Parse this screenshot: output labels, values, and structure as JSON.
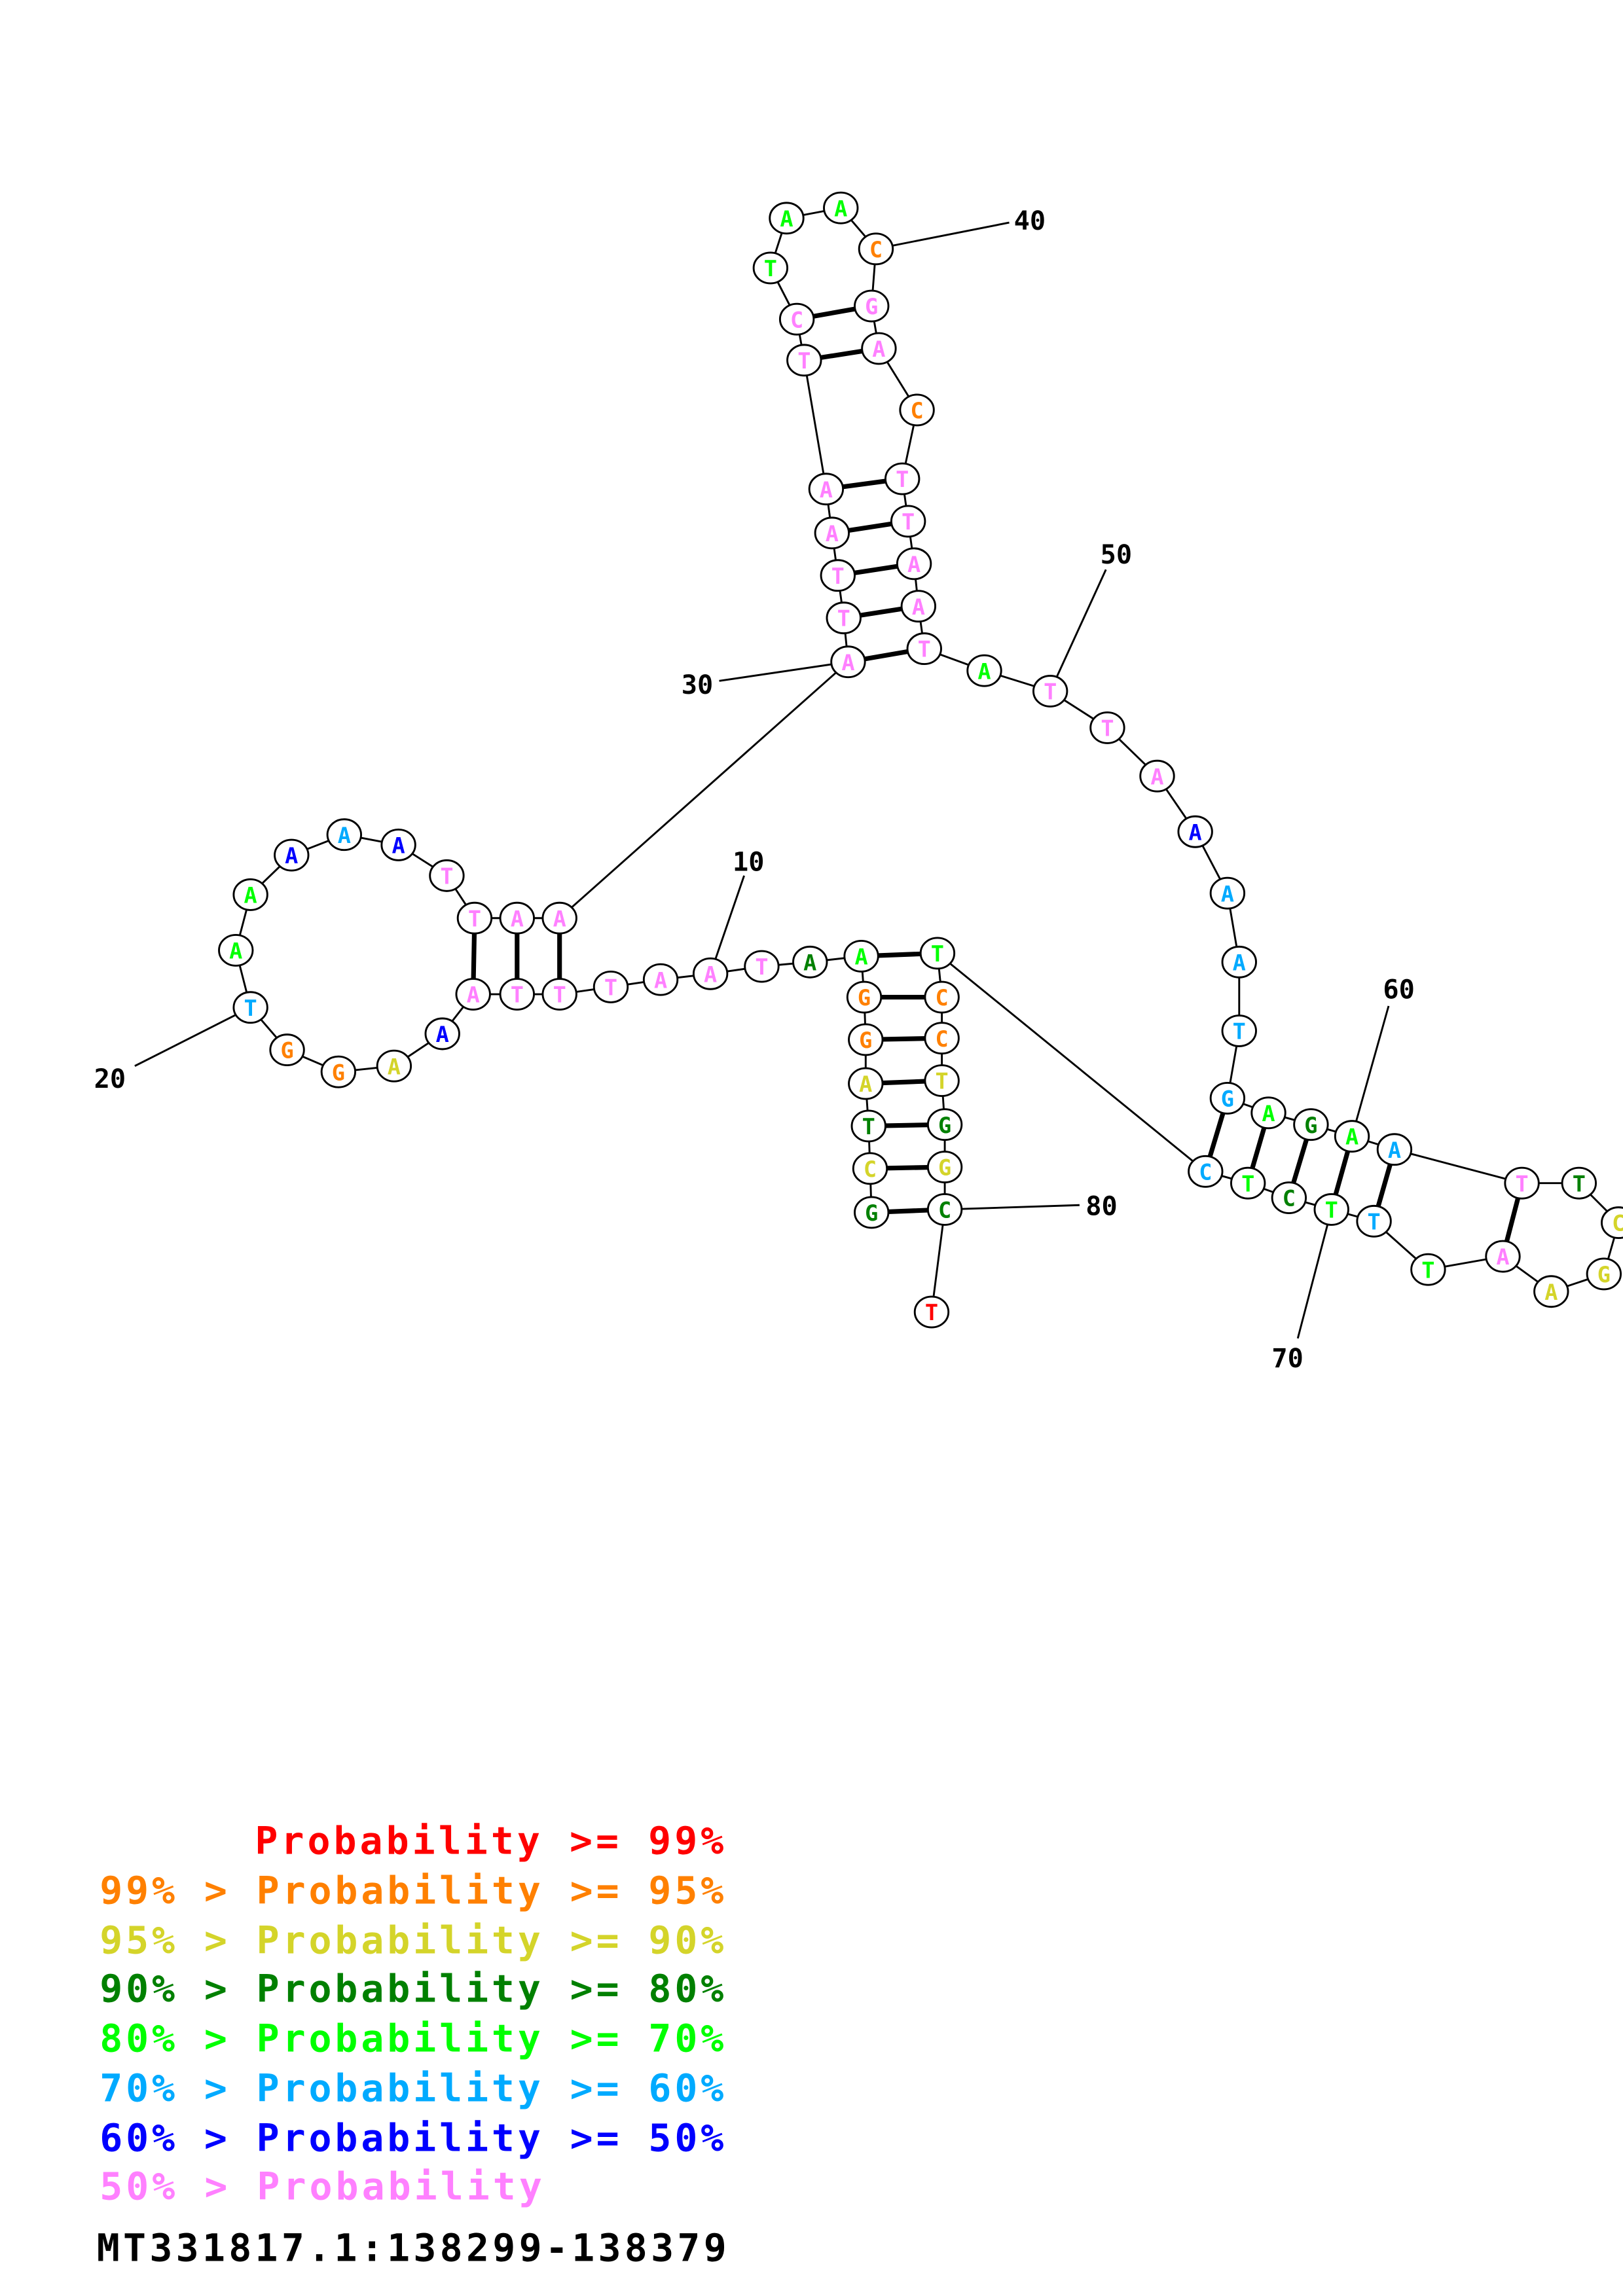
{
  "diagram": {
    "type": "RNA secondary structure",
    "tier_colors": [
      "#ff0000",
      "#ff8000",
      "#d4d42a",
      "#008000",
      "#00ff00",
      "#00aaff",
      "#0000ff",
      "#ff80ff"
    ],
    "nucleotides": [
      {
        "base": "G",
        "tier": 3
      },
      {
        "base": "C",
        "tier": 2
      },
      {
        "base": "T",
        "tier": 3
      },
      {
        "base": "A",
        "tier": 2
      },
      {
        "base": "G",
        "tier": 1
      },
      {
        "base": "G",
        "tier": 1
      },
      {
        "base": "A",
        "tier": 4
      },
      {
        "base": "A",
        "tier": 3
      },
      {
        "base": "T",
        "tier": 7
      },
      {
        "base": "A",
        "tier": 7
      },
      {
        "base": "A",
        "tier": 7
      },
      {
        "base": "T",
        "tier": 7
      },
      {
        "base": "T",
        "tier": 7
      },
      {
        "base": "T",
        "tier": 7
      },
      {
        "base": "A",
        "tier": 7
      },
      {
        "base": "A",
        "tier": 6
      },
      {
        "base": "A",
        "tier": 2
      },
      {
        "base": "G",
        "tier": 1
      },
      {
        "base": "G",
        "tier": 1
      },
      {
        "base": "T",
        "tier": 5
      },
      {
        "base": "A",
        "tier": 4
      },
      {
        "base": "A",
        "tier": 4
      },
      {
        "base": "A",
        "tier": 6
      },
      {
        "base": "A",
        "tier": 5
      },
      {
        "base": "A",
        "tier": 6
      },
      {
        "base": "T",
        "tier": 7
      },
      {
        "base": "T",
        "tier": 7
      },
      {
        "base": "A",
        "tier": 7
      },
      {
        "base": "A",
        "tier": 7
      },
      {
        "base": "A",
        "tier": 7
      },
      {
        "base": "T",
        "tier": 7
      },
      {
        "base": "T",
        "tier": 7
      },
      {
        "base": "A",
        "tier": 7
      },
      {
        "base": "A",
        "tier": 7
      },
      {
        "base": "T",
        "tier": 7
      },
      {
        "base": "C",
        "tier": 7
      },
      {
        "base": "T",
        "tier": 4
      },
      {
        "base": "A",
        "tier": 4
      },
      {
        "base": "A",
        "tier": 4
      },
      {
        "base": "C",
        "tier": 1
      },
      {
        "base": "G",
        "tier": 7
      },
      {
        "base": "A",
        "tier": 7
      },
      {
        "base": "C",
        "tier": 1
      },
      {
        "base": "T",
        "tier": 7
      },
      {
        "base": "T",
        "tier": 7
      },
      {
        "base": "A",
        "tier": 7
      },
      {
        "base": "A",
        "tier": 7
      },
      {
        "base": "T",
        "tier": 7
      },
      {
        "base": "A",
        "tier": 4
      },
      {
        "base": "T",
        "tier": 7
      },
      {
        "base": "T",
        "tier": 7
      },
      {
        "base": "A",
        "tier": 7
      },
      {
        "base": "A",
        "tier": 6
      },
      {
        "base": "A",
        "tier": 5
      },
      {
        "base": "A",
        "tier": 5
      },
      {
        "base": "T",
        "tier": 5
      },
      {
        "base": "G",
        "tier": 5
      },
      {
        "base": "A",
        "tier": 4
      },
      {
        "base": "G",
        "tier": 3
      },
      {
        "base": "A",
        "tier": 4
      },
      {
        "base": "A",
        "tier": 5
      },
      {
        "base": "T",
        "tier": 7
      },
      {
        "base": "T",
        "tier": 3
      },
      {
        "base": "C",
        "tier": 2
      },
      {
        "base": "G",
        "tier": 2
      },
      {
        "base": "A",
        "tier": 2
      },
      {
        "base": "A",
        "tier": 7
      },
      {
        "base": "T",
        "tier": 4
      },
      {
        "base": "T",
        "tier": 5
      },
      {
        "base": "T",
        "tier": 4
      },
      {
        "base": "C",
        "tier": 3
      },
      {
        "base": "T",
        "tier": 4
      },
      {
        "base": "C",
        "tier": 5
      },
      {
        "base": "T",
        "tier": 4
      },
      {
        "base": "C",
        "tier": 1
      },
      {
        "base": "C",
        "tier": 1
      },
      {
        "base": "T",
        "tier": 2
      },
      {
        "base": "G",
        "tier": 3
      },
      {
        "base": "G",
        "tier": 2
      },
      {
        "base": "C",
        "tier": 3
      },
      {
        "base": "T",
        "tier": 0
      }
    ],
    "pairs": [
      [
        1,
        80
      ],
      [
        2,
        79
      ],
      [
        3,
        78
      ],
      [
        4,
        77
      ],
      [
        5,
        76
      ],
      [
        6,
        75
      ],
      [
        7,
        74
      ],
      [
        13,
        29
      ],
      [
        14,
        28
      ],
      [
        15,
        27
      ],
      [
        30,
        48
      ],
      [
        31,
        47
      ],
      [
        32,
        46
      ],
      [
        33,
        45
      ],
      [
        34,
        44
      ],
      [
        35,
        42
      ],
      [
        36,
        41
      ],
      [
        57,
        73
      ],
      [
        58,
        72
      ],
      [
        59,
        71
      ],
      [
        60,
        70
      ],
      [
        61,
        69
      ],
      [
        62,
        67
      ]
    ],
    "position_labels": [
      "10",
      "20",
      "30",
      "40",
      "50",
      "60",
      "70",
      "80"
    ]
  },
  "legend": {
    "entries": [
      {
        "text": "Probability >= 99%",
        "tier": 0
      },
      {
        "text": "99% > Probability >= 95%",
        "tier": 1
      },
      {
        "text": "95% > Probability >= 90%",
        "tier": 2
      },
      {
        "text": "90% > Probability >= 80%",
        "tier": 3
      },
      {
        "text": "80% > Probability >= 70%",
        "tier": 4
      },
      {
        "text": "70% > Probability >= 60%",
        "tier": 5
      },
      {
        "text": "60% > Probability >= 50%",
        "tier": 6
      },
      {
        "text": "50% > Probability",
        "tier": 7
      }
    ],
    "sequence_id": "MT331817.1:138299-138379"
  }
}
